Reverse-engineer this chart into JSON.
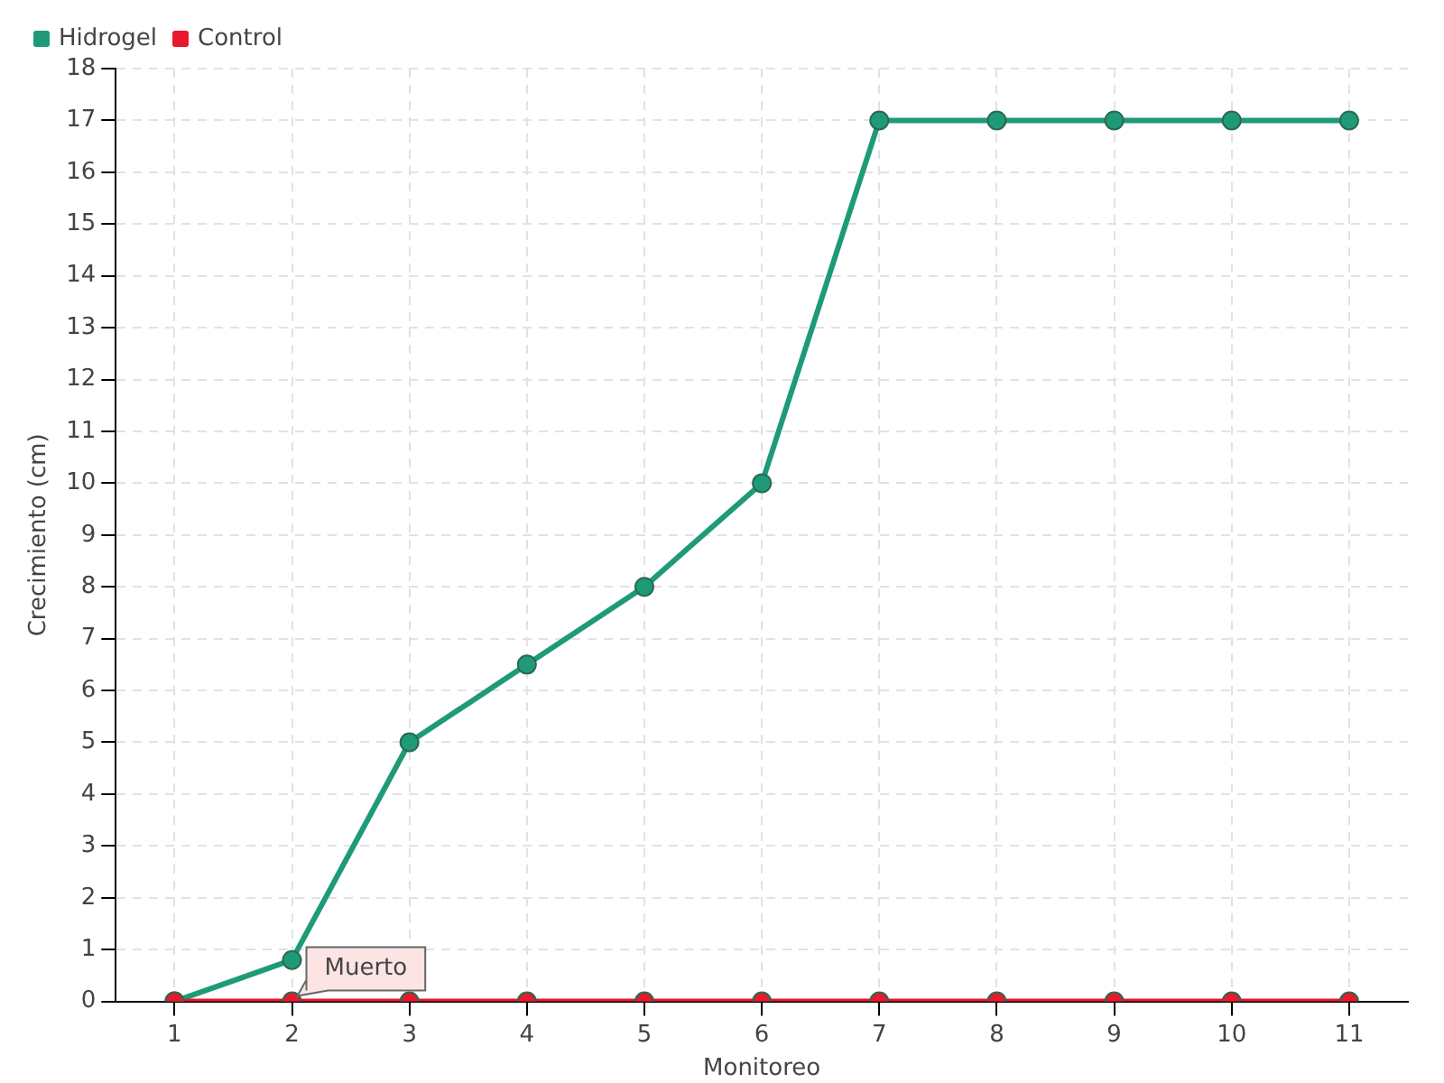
{
  "chart_data": {
    "type": "line",
    "xlabel": "Monitoreo",
    "ylabel": "Crecimiento (cm)",
    "categories": [
      "1",
      "2",
      "3",
      "4",
      "5",
      "6",
      "7",
      "8",
      "9",
      "10",
      "11"
    ],
    "series": [
      {
        "name": "Hidrogel",
        "color": "#1f9a78",
        "values": [
          0,
          0.8,
          5,
          6.5,
          8,
          10,
          17,
          17,
          17,
          17,
          17
        ]
      },
      {
        "name": "Control",
        "color": "#e8192c",
        "values": [
          0,
          0,
          0,
          0,
          0,
          0,
          0,
          0,
          0,
          0,
          0
        ]
      }
    ],
    "ylim": [
      0,
      18
    ],
    "yticks": [
      0,
      1,
      2,
      3,
      4,
      5,
      6,
      7,
      8,
      9,
      10,
      11,
      12,
      13,
      14,
      15,
      16,
      17,
      18
    ],
    "grid": true,
    "legend": "top left",
    "marker": "circle",
    "line_style": "solid",
    "annotations": [
      {
        "text": "Muerto",
        "x": "2",
        "y": 0
      }
    ]
  }
}
